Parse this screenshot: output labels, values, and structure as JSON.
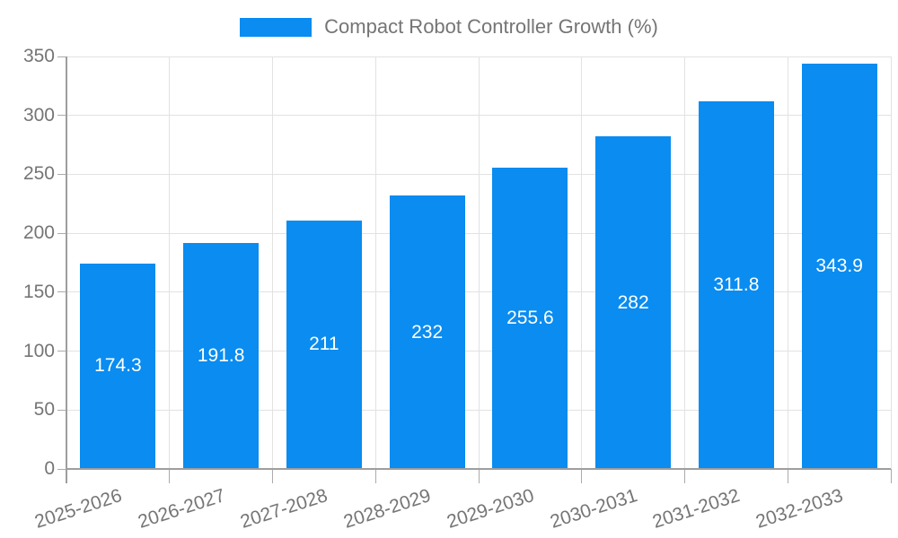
{
  "chart_data": {
    "type": "bar",
    "title": "Compact Robot Controller Growth (%)",
    "categories": [
      "2025-2026",
      "2026-2027",
      "2027-2028",
      "2028-2029",
      "2029-2030",
      "2030-2031",
      "2031-2032",
      "2032-2033"
    ],
    "values": [
      174.3,
      191.8,
      211,
      232,
      255.6,
      282,
      311.8,
      343.9
    ],
    "value_labels": [
      "174.3",
      "191.8",
      "211",
      "232",
      "255.6",
      "282",
      "311.8",
      "343.9"
    ],
    "xlabel": "",
    "ylabel": "",
    "ylim": [
      0,
      350
    ],
    "yticks": [
      0,
      50,
      100,
      150,
      200,
      250,
      300,
      350
    ],
    "grid": true,
    "legend_position": "top",
    "colors": {
      "bar": "#0a8cf0",
      "grid": "#e2e2e2",
      "axis": "#9e9e9e",
      "tick": "#ababab",
      "axis_text": "#757575",
      "value_label": "#ffffff",
      "background": "#ffffff"
    }
  }
}
